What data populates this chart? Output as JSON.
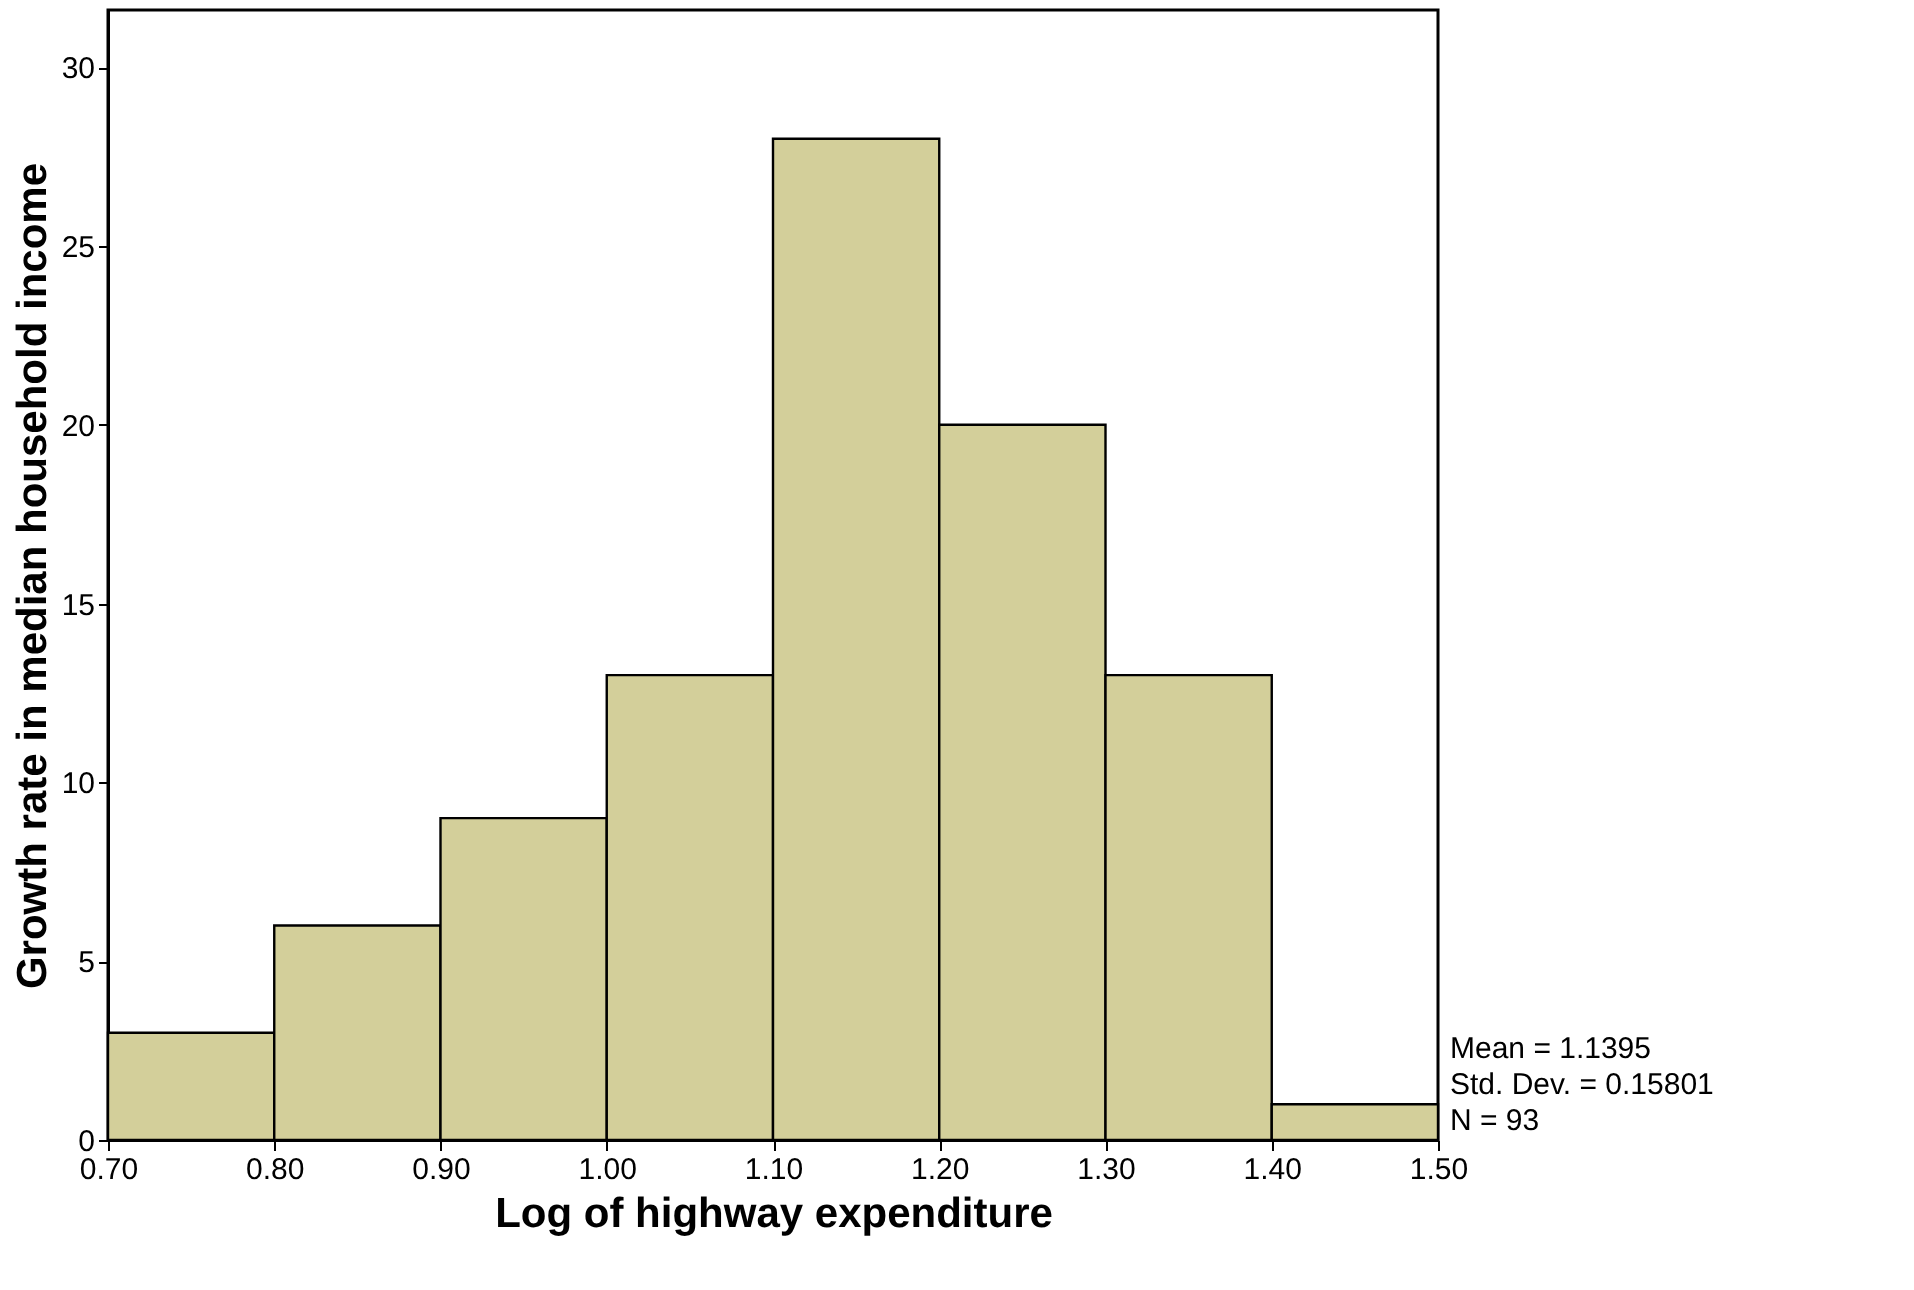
{
  "chart_data": {
    "type": "histogram",
    "xlabel": "Log of highway expenditure",
    "ylabel": "Growth rate in median household income",
    "bins": [
      0.7,
      0.8,
      0.9,
      1.0,
      1.1,
      1.2,
      1.3,
      1.4,
      1.5
    ],
    "values": [
      3,
      6,
      9,
      13,
      28,
      20,
      13,
      1
    ],
    "color": "#d3cf9a",
    "xlim": [
      0.7,
      1.5
    ],
    "xticks": [
      {
        "value": 0.7,
        "label": "0.70"
      },
      {
        "value": 0.8,
        "label": "0.80"
      },
      {
        "value": 0.9,
        "label": "0.90"
      },
      {
        "value": 1.0,
        "label": "1.00"
      },
      {
        "value": 1.1,
        "label": "1.10"
      },
      {
        "value": 1.2,
        "label": "1.20"
      },
      {
        "value": 1.3,
        "label": "1.30"
      },
      {
        "value": 1.4,
        "label": "1.40"
      },
      {
        "value": 1.5,
        "label": "1.50"
      }
    ],
    "ylim": [
      0,
      31.6
    ],
    "yticks": [
      0,
      5,
      10,
      15,
      20,
      25,
      30
    ],
    "grid": false,
    "annotations": [
      "Mean = 1.1395",
      "Std. Dev. = 0.15801",
      "N = 93"
    ]
  }
}
